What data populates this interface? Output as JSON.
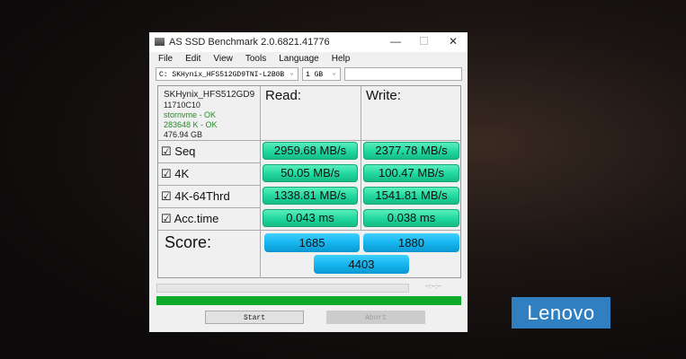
{
  "window": {
    "title": "AS SSD Benchmark 2.0.6821.41776",
    "minimize": "—",
    "maximize": "☐",
    "close": "✕"
  },
  "menu": [
    "File",
    "Edit",
    "View",
    "Tools",
    "Language",
    "Help"
  ],
  "drive_select": {
    "value": "C: SKHynix_HFS512GD9TNI-L2B0B",
    "arrow": "⌄"
  },
  "size_select": {
    "value": "1 GB",
    "arrow": "⌄"
  },
  "text_field": {
    "value": ""
  },
  "drive_info": {
    "model": "SKHynix_HFS512GD9",
    "firmware": "11710C10",
    "driver": "stornvme - OK",
    "alignment": "283648 K - OK",
    "capacity": "476.94 GB"
  },
  "headers": {
    "read": "Read:",
    "write": "Write:"
  },
  "rows": [
    {
      "label": "Seq",
      "checked": true,
      "read": "2959.68 MB/s",
      "write": "2377.78 MB/s"
    },
    {
      "label": "4K",
      "checked": true,
      "read": "50.05 MB/s",
      "write": "100.47 MB/s"
    },
    {
      "label": "4K-64Thrd",
      "checked": true,
      "read": "1338.81 MB/s",
      "write": "1541.81 MB/s"
    },
    {
      "label": "Acc.time",
      "checked": true,
      "read": "0.043 ms",
      "write": "0.038 ms"
    }
  ],
  "score": {
    "label": "Score:",
    "read": "1685",
    "write": "1880",
    "total": "4403"
  },
  "progress": {
    "value": 0,
    "timer": "--:--:--"
  },
  "overall_progress": {
    "value": 100,
    "color": "#0eab2a"
  },
  "buttons": {
    "start": "Start",
    "abort": "Abort"
  },
  "checkbox_glyph": "☑",
  "brand": "Lenovo"
}
